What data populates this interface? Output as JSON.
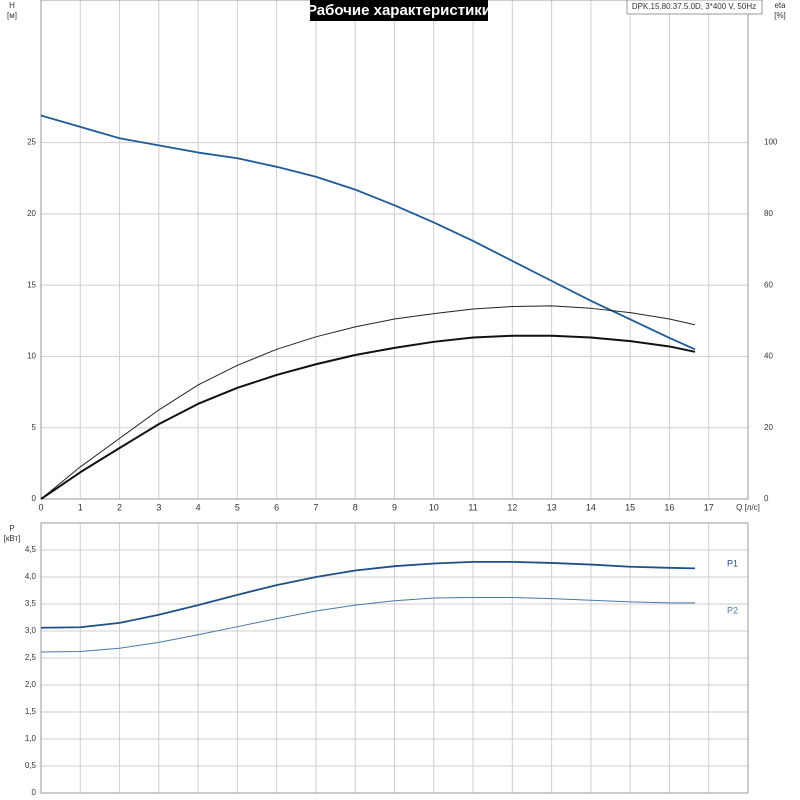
{
  "chart_data": [
    {
      "type": "line",
      "title": "Рабочие характеристики",
      "subtitle": "DPK.15.80.37.5.0D, 3*400 V, 50Hz",
      "x_label": "Q [л/с]",
      "y_label": [
        "H",
        "[м]"
      ],
      "y2_label": [
        "eta",
        "[%]"
      ],
      "x": [
        0,
        1,
        2,
        3,
        4,
        5,
        6,
        7,
        8,
        9,
        10,
        11,
        12,
        13,
        14,
        15,
        16,
        16.65
      ],
      "xlim": [
        0,
        18
      ],
      "xticks": [
        0,
        1,
        2,
        3,
        4,
        5,
        6,
        7,
        8,
        9,
        10,
        11,
        12,
        13,
        14,
        15,
        16,
        17
      ],
      "ylim": [
        0,
        35
      ],
      "yticks": [
        0,
        5,
        10,
        15,
        20,
        25
      ],
      "y2lim": [
        0,
        140
      ],
      "y2ticks": [
        0,
        20,
        40,
        60,
        80,
        100
      ],
      "grid": true,
      "series": [
        {
          "color": "#1f5a96",
          "width": 1.8,
          "values": [
            26.9,
            26.1,
            25.3,
            24.8,
            24.3,
            23.9,
            23.3,
            22.6,
            21.7,
            20.6,
            19.4,
            18.1,
            16.7,
            15.3,
            13.9,
            12.6,
            11.3,
            10.5
          ]
        },
        {
          "color": "#222222",
          "width": 1,
          "axis": "y2",
          "values": [
            0,
            9,
            17,
            25,
            32,
            37.5,
            42,
            45.5,
            48.3,
            50.5,
            52,
            53.3,
            54,
            54.2,
            53.5,
            52.3,
            50.5,
            48.9
          ]
        },
        {
          "color": "#111111",
          "width": 2,
          "axis": "y2",
          "values": [
            0,
            7.5,
            14.3,
            21,
            26.7,
            31.2,
            34.8,
            37.8,
            40.4,
            42.4,
            44.1,
            45.3,
            45.8,
            45.8,
            45.3,
            44.3,
            42.8,
            41.3
          ]
        }
      ]
    },
    {
      "type": "line",
      "y_label": [
        "P",
        "[кВт]"
      ],
      "x": [
        0,
        1,
        2,
        3,
        4,
        5,
        6,
        7,
        8,
        9,
        10,
        11,
        12,
        13,
        14,
        15,
        16,
        16.65
      ],
      "xlim": [
        0,
        18
      ],
      "ylim": [
        0,
        5
      ],
      "yticks": [
        0,
        {
          "value": 0.5,
          "label": "0,5"
        },
        {
          "value": 1,
          "label": "1,0"
        },
        {
          "value": 1.5,
          "label": "1,5"
        },
        {
          "value": 2,
          "label": "2,0"
        },
        {
          "value": 2.5,
          "label": "2,5"
        },
        {
          "value": 3,
          "label": "3,0"
        },
        {
          "value": 3.5,
          "label": "3,5"
        },
        {
          "value": 4,
          "label": "4,0"
        },
        {
          "value": 4.5,
          "label": "4,5"
        }
      ],
      "grid": true,
      "series": [
        {
          "name": "P1",
          "color": "#1f4f86",
          "width": 1.8,
          "values": [
            3.06,
            3.07,
            3.15,
            3.3,
            3.48,
            3.67,
            3.85,
            4.0,
            4.12,
            4.2,
            4.25,
            4.28,
            4.28,
            4.26,
            4.23,
            4.19,
            4.17,
            4.16
          ]
        },
        {
          "name": "P2",
          "color": "#4a77a8",
          "width": 1,
          "values": [
            2.61,
            2.62,
            2.68,
            2.79,
            2.93,
            3.08,
            3.23,
            3.37,
            3.48,
            3.56,
            3.61,
            3.62,
            3.62,
            3.6,
            3.57,
            3.54,
            3.52,
            3.52
          ]
        }
      ]
    }
  ]
}
